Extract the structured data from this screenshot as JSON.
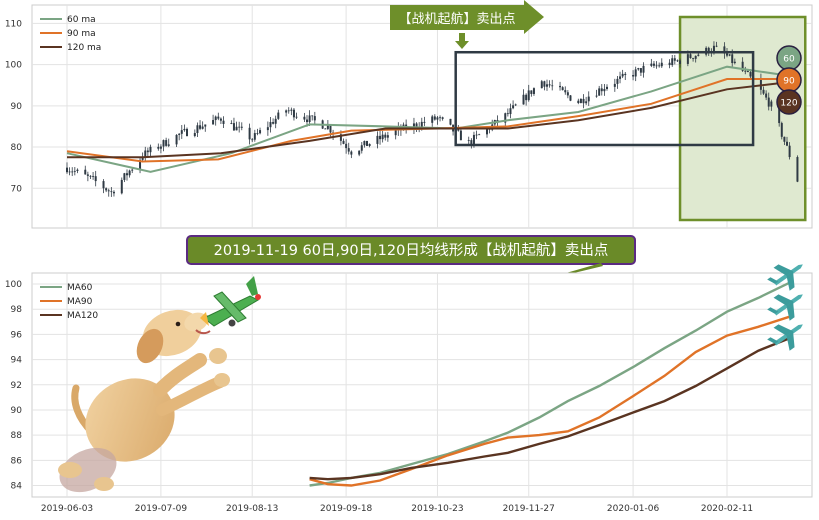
{
  "banner_top": "【战机起航】卖出点",
  "banner_mid": "2019-11-19 60日,90日,120日均线形成【战机起航】卖出点",
  "badges": [
    "60",
    "90",
    "120"
  ],
  "colors": {
    "ma60": "#7ba584",
    "ma90": "#e07328",
    "ma120": "#5a3421",
    "candle": "#2f3a44",
    "banner_green": "#6e8f2a",
    "banner_mid_fill": "#6a8a28",
    "banner_mid_border": "#5b2a82",
    "highlight_fill": "#dfe9d0",
    "highlight_border": "#6e8f2a",
    "rect_border": "#2f3a44"
  },
  "chart_data": [
    {
      "type": "candlestick",
      "title": "",
      "xlabel": "",
      "ylabel": "",
      "ylim": [
        64,
        113
      ],
      "yticks": [
        70,
        80,
        90,
        100,
        110
      ],
      "legend": {
        "placement": "top-left",
        "entries": [
          "60 ma",
          "90 ma",
          "120 ma"
        ]
      },
      "grid": true,
      "price_path": {
        "dates": [
          "2019-06-03",
          "2019-06-13",
          "2019-06-20",
          "2019-07-02",
          "2019-07-16",
          "2019-08-01",
          "2019-08-13",
          "2019-08-26",
          "2019-09-11",
          "2019-09-20",
          "2019-10-08",
          "2019-10-23",
          "2019-11-04",
          "2019-11-19",
          "2019-12-02",
          "2019-12-16",
          "2019-12-27",
          "2020-01-10",
          "2020-01-24",
          "2020-02-06",
          "2020-02-11",
          "2020-02-21",
          "2020-02-28",
          "2020-03-06",
          "2020-03-09"
        ],
        "close": [
          75,
          72,
          69,
          78,
          83,
          87,
          82,
          89,
          85,
          79,
          84,
          87,
          81,
          88,
          96,
          91,
          95,
          99,
          101,
          104,
          102,
          96,
          90,
          78,
          72
        ]
      },
      "series": [
        {
          "name": "60 ma",
          "dates": [
            "2019-06-03",
            "2019-07-05",
            "2019-08-05",
            "2019-09-04",
            "2019-10-03",
            "2019-10-30",
            "2019-11-19",
            "2019-12-16",
            "2020-01-13",
            "2020-02-11",
            "2020-03-09"
          ],
          "values": [
            78.5,
            74.0,
            78.5,
            85.5,
            85.0,
            84.5,
            86.5,
            88.5,
            93.5,
            99.5,
            97.0
          ]
        },
        {
          "name": "90 ma",
          "dates": [
            "2019-06-03",
            "2019-07-02",
            "2019-07-31",
            "2019-08-28",
            "2019-09-20",
            "2019-10-23",
            "2019-11-19",
            "2019-12-16",
            "2020-01-13",
            "2020-02-11",
            "2020-03-09"
          ],
          "values": [
            79.0,
            76.5,
            77.0,
            81.5,
            84.0,
            84.5,
            85.0,
            87.5,
            90.5,
            96.5,
            96.5
          ]
        },
        {
          "name": "120 ma",
          "dates": [
            "2019-06-03",
            "2019-07-02",
            "2019-08-01",
            "2019-09-04",
            "2019-10-03",
            "2019-10-30",
            "2019-11-19",
            "2019-12-16",
            "2020-01-13",
            "2020-02-11",
            "2020-03-09"
          ],
          "values": [
            77.5,
            77.5,
            78.5,
            81.5,
            84.5,
            84.5,
            84.5,
            86.5,
            89.5,
            94.0,
            96.0
          ]
        }
      ],
      "annotations": [
        "【战机起航】卖出点"
      ]
    },
    {
      "type": "line",
      "title": "",
      "xlabel": "",
      "ylabel": "",
      "xticks": [
        "2019-06-03",
        "2019-07-09",
        "2019-08-13",
        "2019-09-18",
        "2019-10-23",
        "2019-11-27",
        "2020-01-06",
        "2020-02-11"
      ],
      "yticks": [
        84,
        86,
        88,
        90,
        92,
        94,
        96,
        98,
        100
      ],
      "ylim": [
        83.3,
        100.6
      ],
      "legend": {
        "placement": "top-left",
        "entries": [
          "MA60",
          "MA90",
          "MA120"
        ]
      },
      "grid": true,
      "series": [
        {
          "name": "MA60",
          "dates": [
            "2019-09-04",
            "2019-09-11",
            "2019-09-20",
            "2019-10-01",
            "2019-10-13",
            "2019-10-27",
            "2019-11-10",
            "2019-11-19",
            "2019-12-01",
            "2019-12-12",
            "2019-12-24",
            "2020-01-06",
            "2020-01-18",
            "2020-01-30",
            "2020-02-11",
            "2020-02-23",
            "2020-03-06"
          ],
          "values": [
            84.0,
            84.2,
            84.6,
            85.0,
            85.7,
            86.5,
            87.5,
            88.2,
            89.4,
            90.7,
            91.9,
            93.4,
            94.9,
            96.3,
            97.8,
            98.9,
            100.1
          ]
        },
        {
          "name": "MA90",
          "dates": [
            "2019-09-04",
            "2019-09-11",
            "2019-09-20",
            "2019-10-01",
            "2019-10-13",
            "2019-10-27",
            "2019-11-10",
            "2019-11-19",
            "2019-12-01",
            "2019-12-12",
            "2019-12-24",
            "2020-01-06",
            "2020-01-18",
            "2020-01-30",
            "2020-02-11",
            "2020-02-23",
            "2020-03-06"
          ],
          "values": [
            84.5,
            84.1,
            84.0,
            84.4,
            85.3,
            86.4,
            87.3,
            87.8,
            88.0,
            88.3,
            89.4,
            91.1,
            92.7,
            94.6,
            95.9,
            96.6,
            97.4
          ]
        },
        {
          "name": "MA120",
          "dates": [
            "2019-09-04",
            "2019-09-11",
            "2019-09-20",
            "2019-10-01",
            "2019-10-13",
            "2019-10-27",
            "2019-11-10",
            "2019-11-19",
            "2019-12-01",
            "2019-12-12",
            "2019-12-24",
            "2020-01-06",
            "2020-01-18",
            "2020-01-30",
            "2020-02-11",
            "2020-02-23",
            "2020-03-06"
          ],
          "values": [
            84.6,
            84.5,
            84.6,
            84.9,
            85.4,
            85.8,
            86.3,
            86.6,
            87.3,
            87.9,
            88.8,
            89.8,
            90.7,
            91.9,
            93.3,
            94.7,
            95.7
          ]
        }
      ]
    }
  ]
}
